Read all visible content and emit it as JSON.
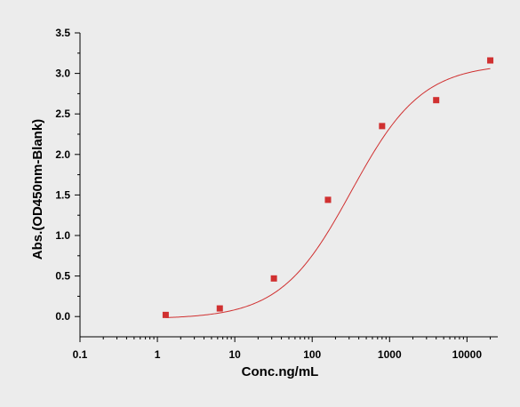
{
  "chart_data": {
    "type": "scatter",
    "xlabel": "Conc.ng/mL",
    "ylabel": "Abs.(OD450nm-Blank)",
    "xscale": "log",
    "xlim": [
      0.1,
      25000
    ],
    "ylim": [
      -0.25,
      3.5
    ],
    "x_ticks": [
      0.1,
      1,
      10,
      100,
      1000,
      10000
    ],
    "x_tick_labels": [
      "0.1",
      "1",
      "10",
      "100",
      "1000",
      "10000"
    ],
    "y_ticks": [
      0,
      0.5,
      1,
      1.5,
      2,
      2.5,
      3,
      3.5
    ],
    "y_tick_labels": [
      "0.0",
      "0.5",
      "1.0",
      "1.5",
      "2.0",
      "2.5",
      "3.0",
      "3.5"
    ],
    "grid": false,
    "series": [
      {
        "type": "scatter",
        "color": "#d03030",
        "marker": "square",
        "points": [
          {
            "x": 1.28,
            "y": 0.02
          },
          {
            "x": 6.4,
            "y": 0.1
          },
          {
            "x": 32,
            "y": 0.47
          },
          {
            "x": 160,
            "y": 1.44
          },
          {
            "x": 800,
            "y": 2.35
          },
          {
            "x": 4000,
            "y": 2.67
          },
          {
            "x": 20000,
            "y": 3.16
          }
        ]
      },
      {
        "type": "line",
        "color": "#d03030",
        "fit": "4PL",
        "parameters": {
          "bottom": -0.03,
          "top": 3.12,
          "ec50": 320,
          "hill": 0.95
        },
        "x_range": [
          1.28,
          20000
        ]
      }
    ]
  }
}
